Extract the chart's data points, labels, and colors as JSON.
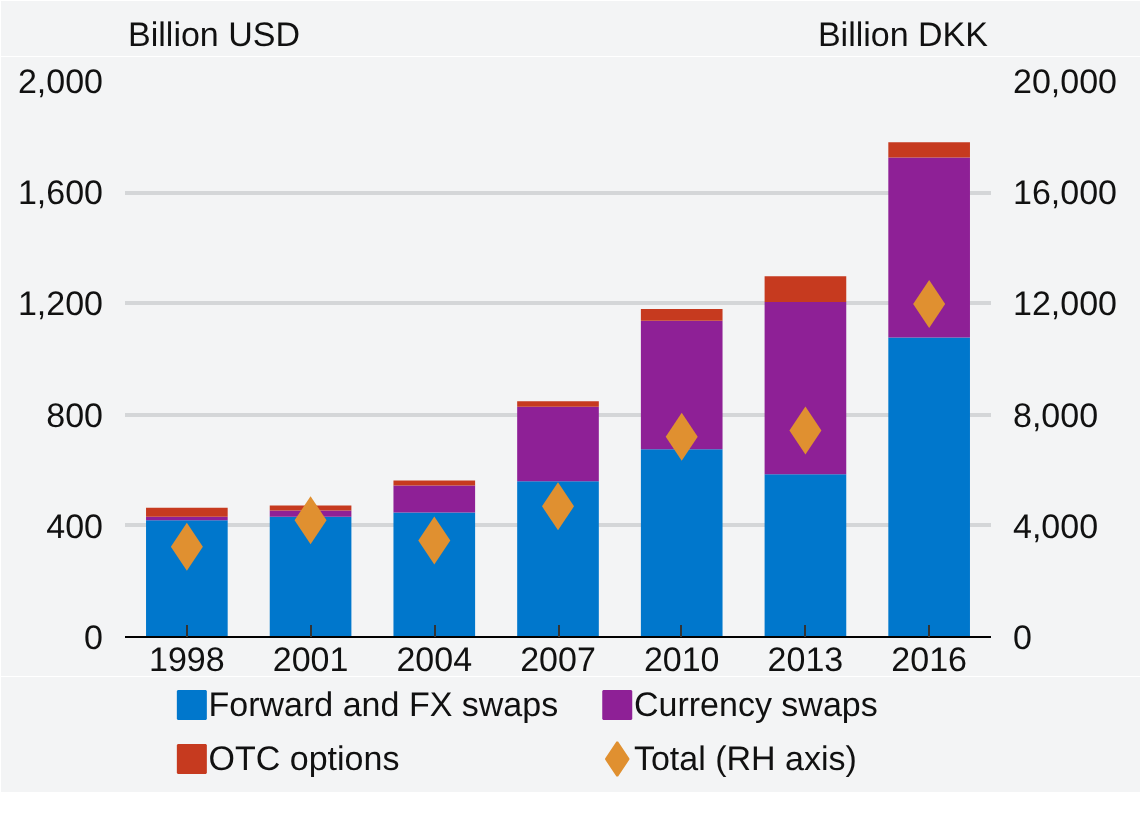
{
  "chart_data": {
    "type": "bar",
    "stacked": true,
    "ylabel": "Billion USD",
    "y2label": "Billion DKK",
    "categories": [
      "1998",
      "2001",
      "2004",
      "2007",
      "2010",
      "2013",
      "2016"
    ],
    "series": [
      {
        "name": "Forward and FX swaps",
        "color": "#0077cc",
        "values": [
          420,
          433,
          448,
          560,
          675,
          585,
          1077
        ]
      },
      {
        "name": "Currency swaps",
        "color": "#8e2096",
        "values": [
          13,
          22,
          97,
          268,
          463,
          620,
          648
        ]
      },
      {
        "name": "OTC options",
        "color": "#c63a1f",
        "values": [
          32,
          18,
          18,
          20,
          42,
          93,
          55
        ]
      },
      {
        "name": "Total (RH axis)",
        "color": "#e09030",
        "type": "scatter",
        "axis": "y2",
        "marker": "diamond",
        "values": [
          3250,
          4200,
          3470,
          4700,
          7200,
          7430,
          11980
        ]
      }
    ],
    "ylim": [
      0,
      2000
    ],
    "yticks": [
      0,
      400,
      800,
      {
        "value": 1200,
        "label": "1,200"
      },
      {
        "value": 1600,
        "label": "1,600"
      },
      {
        "value": 2000,
        "label": "2,000"
      }
    ],
    "y2lim": [
      0,
      20000
    ],
    "y2ticks": [
      0,
      {
        "value": 4000,
        "label": "4,000"
      },
      {
        "value": 8000,
        "label": "8,000"
      },
      {
        "value": 12000,
        "label": "12,000"
      },
      {
        "value": 16000,
        "label": "16,000"
      },
      {
        "value": 20000,
        "label": "20,000"
      }
    ],
    "grid": "y",
    "legend": "bottom"
  }
}
